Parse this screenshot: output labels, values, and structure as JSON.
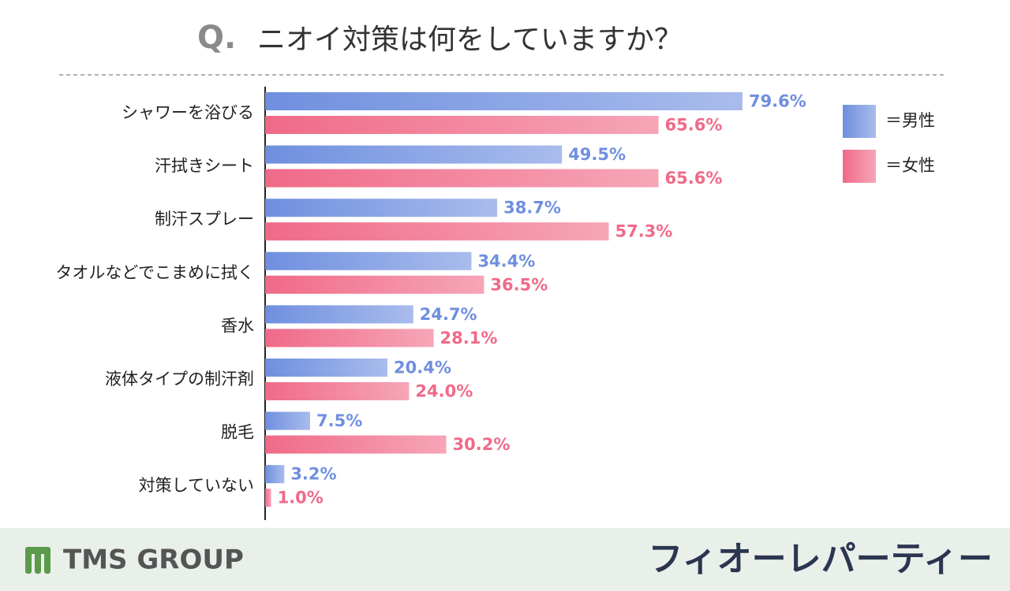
{
  "chart_data": {
    "type": "hbar",
    "title_prefix": "Q.",
    "title": "ニオイ対策は何をしていますか？",
    "categories": [
      "シャワーを浴びる",
      "汗拭きシート",
      "制汗スプレー",
      "タオルなどでこまめに拭く",
      "香水",
      "液体タイプの制汗剤",
      "脱毛",
      "対策していない"
    ],
    "series": [
      {
        "name": "＝男性",
        "color": "#6f8fdf",
        "values": [
          79.6,
          49.5,
          38.7,
          34.4,
          24.7,
          20.4,
          7.5,
          3.2
        ],
        "value_labels": [
          "79.6%",
          "49.5%",
          "38.7%",
          "34.4%",
          "24.7%",
          "20.4%",
          "7.5%",
          "3.2%"
        ]
      },
      {
        "name": "＝女性",
        "color": "#f06a88",
        "values": [
          65.6,
          65.6,
          57.3,
          36.5,
          28.1,
          24.0,
          30.2,
          1.0
        ],
        "value_labels": [
          "65.6%",
          "65.6%",
          "57.3%",
          "36.5%",
          "28.1%",
          "24.0%",
          "30.2%",
          "1.0%"
        ]
      }
    ],
    "xlim": [
      0,
      100
    ],
    "legend": "top-right"
  },
  "footer": {
    "left": "TMS GROUP",
    "right": "フィオーレパーティー"
  }
}
